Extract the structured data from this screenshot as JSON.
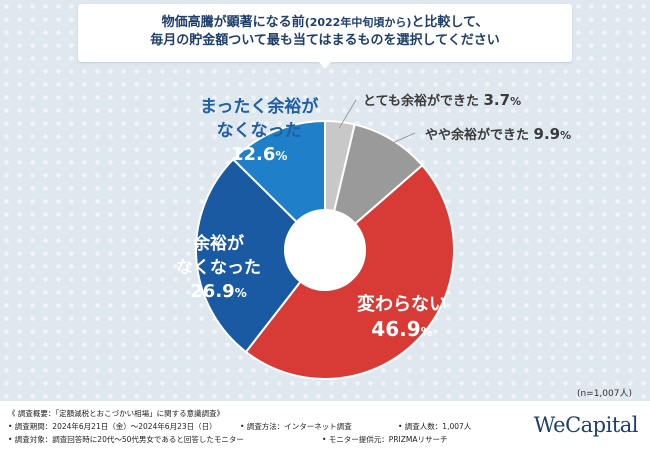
{
  "title": {
    "line1_pre": "物価高騰が顕著になる前",
    "line1_paren": "(2022年中旬頃から)",
    "line1_post": "と比較して、",
    "line2": "毎月の貯金額ついて最も当てはまるものを選択してください"
  },
  "chart_data": {
    "type": "pie",
    "style": "donut",
    "start": "top",
    "direction": "clockwise",
    "slices": [
      {
        "label": "とても余裕ができた",
        "value": 3.7,
        "color": "#c8c8c8",
        "label_placement": "outside"
      },
      {
        "label": "やや余裕ができた",
        "value": 9.9,
        "color": "#9a9a9a",
        "label_placement": "outside"
      },
      {
        "label": "変わらない",
        "value": 46.9,
        "color": "#d83b36",
        "label_placement": "inside"
      },
      {
        "label": "余裕がなくなった",
        "value": 26.9,
        "color": "#1a5aa3",
        "label_placement": "inside"
      },
      {
        "label": "まったく余裕がなくなった",
        "value": 12.6,
        "color": "#1f80c9",
        "label_placement": "inside"
      }
    ],
    "percent_sign": "%"
  },
  "labels": {
    "very_enough": {
      "text": "とても余裕ができた",
      "value": "3.7"
    },
    "somewhat_enough": {
      "text": "やや余裕ができた",
      "value": "9.9"
    },
    "no_change": {
      "text": "変わらない",
      "value": "46.9"
    },
    "less": {
      "line1": "余裕が",
      "line2": "なくなった",
      "value": "26.9"
    },
    "much_less": {
      "line1": "まったく余裕が",
      "line2": "なくなった",
      "value": "12.6"
    }
  },
  "sample_note": "(n=1,007人)",
  "footer": {
    "survey_summary": "《 調査概要：「定額減税とおこづかい相場」に関する意識調査》",
    "period": "• 調査期間：2024年6月21日（金）〜2024年6月23日（日）",
    "method": "• 調査方法：インターネット調査",
    "count": "• 調査人数：1,007人",
    "target": "• 調査対象：調査回答時に20代〜50代男女であると回答したモニター",
    "provider": "• モニター提供元：PRIZMAリサーチ"
  },
  "brand": "WeCapital"
}
